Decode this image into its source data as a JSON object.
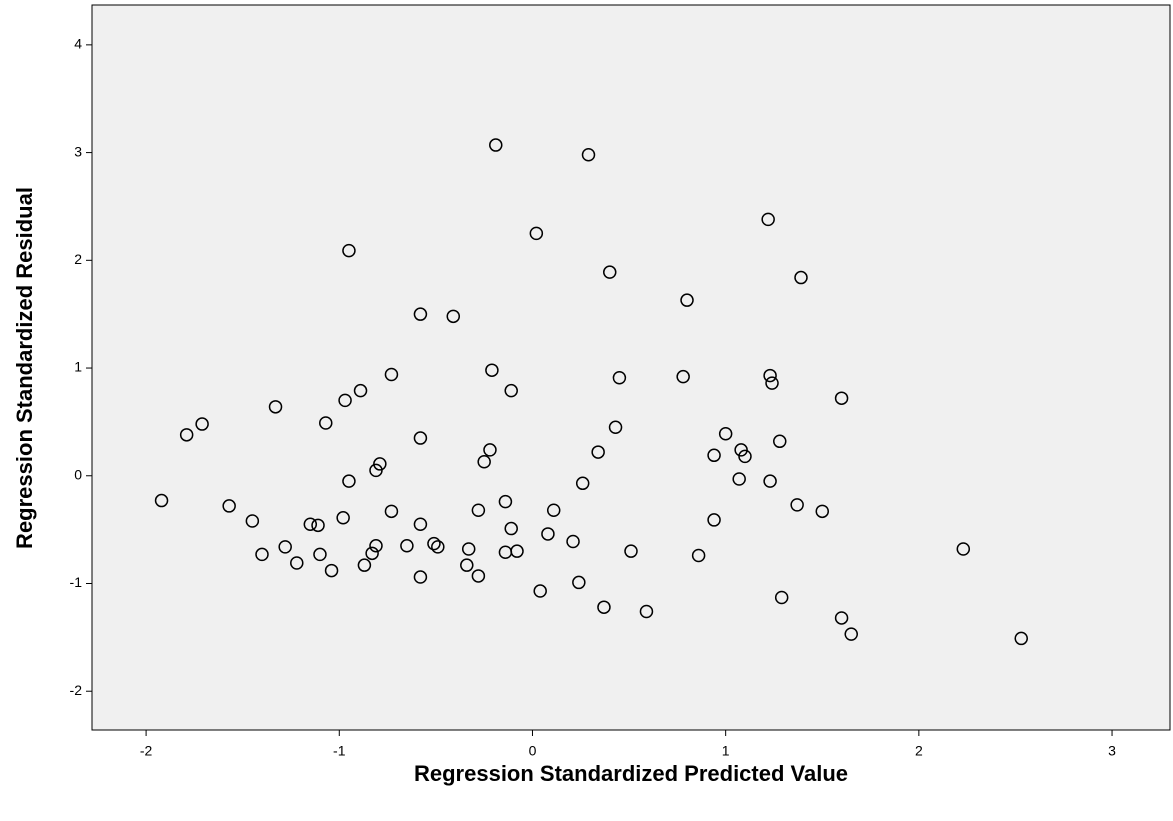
{
  "chart_data": {
    "type": "scatter",
    "x_label": "Regression Standardized Predicted Value",
    "y_label": "Regression Standardized Residual",
    "xlim": [
      -2.28,
      3.3
    ],
    "ylim": [
      -2.36,
      4.37
    ],
    "xticks": [
      -2,
      -1,
      0,
      1,
      2,
      3
    ],
    "yticks": [
      -2,
      -1,
      0,
      1,
      2,
      3,
      4
    ],
    "color": "#000000",
    "x": [
      -0.19,
      0.29,
      -0.95,
      0.02,
      1.22,
      0.4,
      1.39,
      0.8,
      -0.58,
      -0.41,
      -0.73,
      -0.21,
      0.45,
      0.78,
      1.23,
      1.24,
      -0.11,
      -0.89,
      -0.97,
      -1.33,
      1.6,
      -1.07,
      -1.71,
      -1.79,
      0.43,
      -0.58,
      1.0,
      1.28,
      -0.22,
      0.34,
      1.08,
      0.94,
      1.1,
      -0.25,
      -0.79,
      -0.81,
      -0.95,
      1.07,
      1.23,
      0.26,
      -1.92,
      -1.57,
      -0.14,
      1.37,
      -0.73,
      -0.28,
      0.11,
      1.5,
      -1.45,
      -0.98,
      0.94,
      -1.15,
      -1.11,
      -0.58,
      -0.11,
      0.08,
      -1.28,
      -0.65,
      -0.51,
      -0.49,
      -0.81,
      0.21,
      -0.33,
      -0.08,
      -0.14,
      0.51,
      2.23,
      -1.4,
      -1.1,
      -0.83,
      0.86,
      -1.22,
      -0.87,
      -0.34,
      -1.04,
      -0.58,
      -0.28,
      0.24,
      0.04,
      1.29,
      0.37,
      0.59,
      1.6,
      1.65,
      2.53
    ],
    "y": [
      3.07,
      2.98,
      2.09,
      2.25,
      2.38,
      1.89,
      1.84,
      1.63,
      1.5,
      1.48,
      0.94,
      0.98,
      0.91,
      0.92,
      0.93,
      0.86,
      0.79,
      0.79,
      0.7,
      0.64,
      0.72,
      0.49,
      0.48,
      0.38,
      0.45,
      0.35,
      0.39,
      0.32,
      0.24,
      0.22,
      0.24,
      0.19,
      0.18,
      0.13,
      0.11,
      0.05,
      -0.05,
      -0.03,
      -0.05,
      -0.07,
      -0.23,
      -0.28,
      -0.24,
      -0.27,
      -0.33,
      -0.32,
      -0.32,
      -0.33,
      -0.42,
      -0.39,
      -0.41,
      -0.45,
      -0.46,
      -0.45,
      -0.49,
      -0.54,
      -0.66,
      -0.65,
      -0.63,
      -0.66,
      -0.65,
      -0.61,
      -0.68,
      -0.7,
      -0.71,
      -0.7,
      -0.68,
      -0.73,
      -0.73,
      -0.72,
      -0.74,
      -0.81,
      -0.83,
      -0.83,
      -0.88,
      -0.94,
      -0.93,
      -0.99,
      -1.07,
      -1.13,
      -1.22,
      -1.26,
      -1.32,
      -1.47,
      -1.51
    ]
  }
}
